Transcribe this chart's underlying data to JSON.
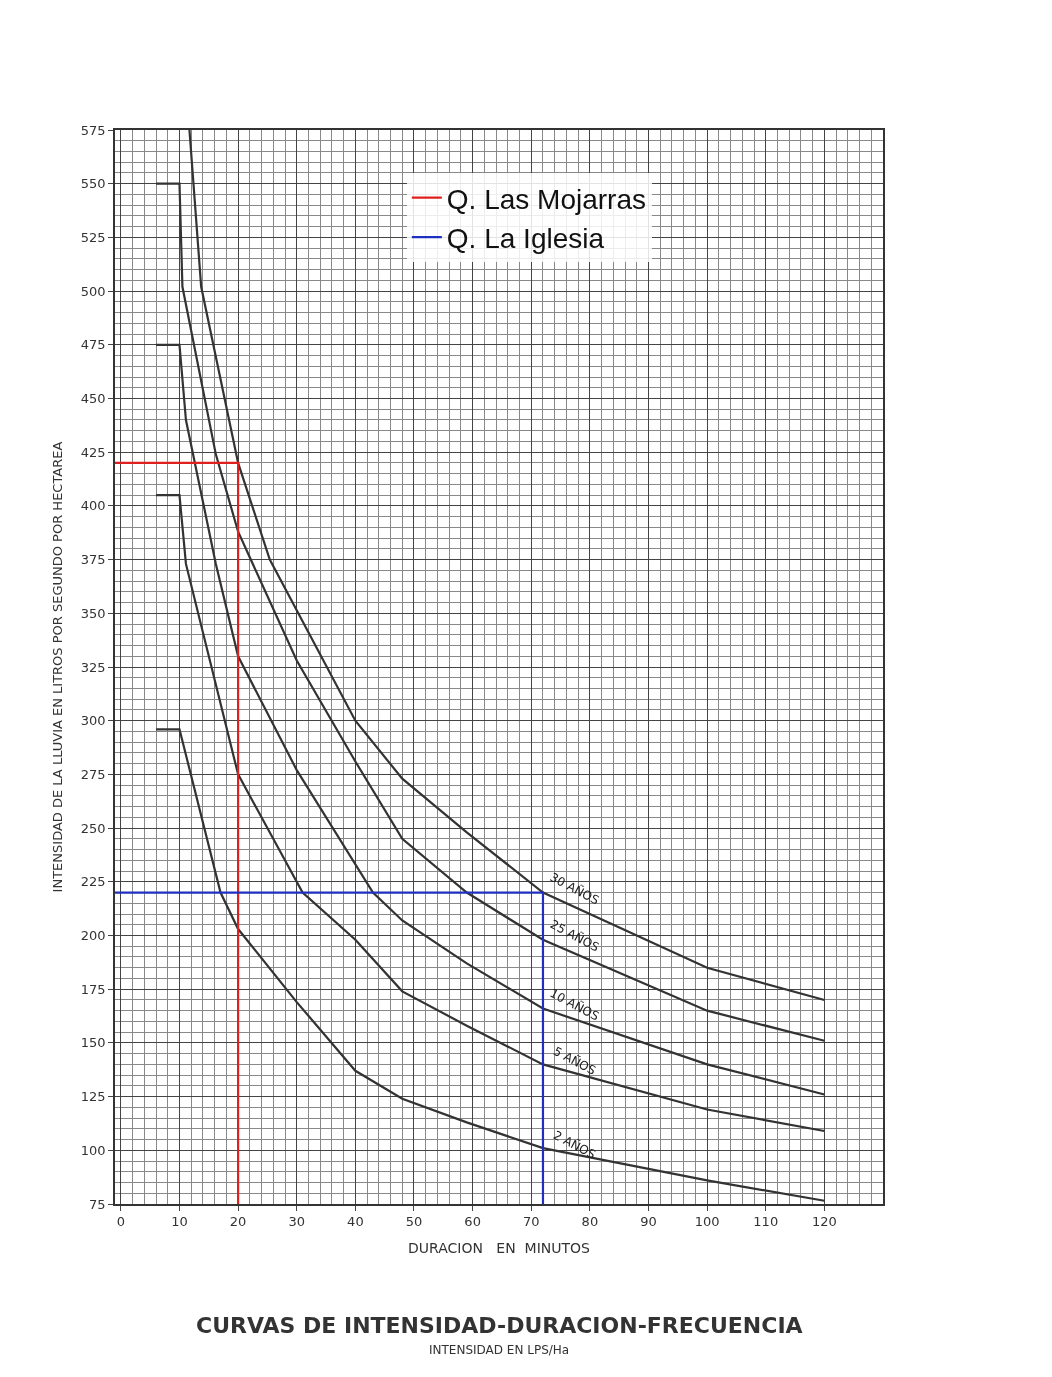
{
  "chart_data": {
    "type": "line",
    "title": "CURVAS DE INTENSIDAD-DURACION-FRECUENCIA",
    "subtitle": "INTENSIDAD EN LPS/Ha",
    "xlabel": "DURACION   EN  MINUTOS",
    "ylabel": "INTENSIDAD DE LA LLUVIA EN LITROS POR SEGUNDO POR HECTAREA",
    "series": [
      {
        "name": "30 AÑOS",
        "color": "#333333",
        "x": [
          11.7,
          13.7,
          20,
          25.4,
          40,
          48,
          59,
          72,
          100,
          120
        ],
        "values": [
          575,
          502,
          420,
          375,
          300,
          273,
          248,
          220,
          185,
          170
        ]
      },
      {
        "name": "25 AÑOS",
        "color": "#333333",
        "x": [
          6,
          10,
          10.5,
          16.2,
          20,
          30,
          40,
          48,
          59,
          72,
          100,
          120
        ],
        "values": [
          550,
          550,
          502,
          424,
          388,
          328,
          281,
          245,
          220,
          198,
          165,
          151
        ]
      },
      {
        "name": "10 AÑOS",
        "color": "#333333",
        "x": [
          6,
          10,
          11.1,
          16.2,
          20,
          30,
          43,
          48,
          59,
          72,
          100,
          120
        ],
        "values": [
          475,
          475,
          440,
          373,
          330,
          277,
          220,
          207,
          187,
          166,
          140,
          126
        ]
      },
      {
        "name": "5 AÑOS",
        "color": "#333333",
        "x": [
          6,
          10,
          11.1,
          20,
          31,
          40,
          48,
          59,
          72,
          100,
          120
        ],
        "values": [
          405,
          405,
          373,
          275,
          220,
          198,
          174,
          158,
          140,
          119,
          109
        ]
      },
      {
        "name": "2 AÑOS",
        "color": "#333333",
        "x": [
          6,
          10,
          17,
          20,
          30,
          40,
          48,
          59,
          72,
          100,
          120
        ],
        "values": [
          296,
          296,
          220,
          203,
          169,
          137,
          124,
          113,
          101,
          86,
          76.5
        ]
      },
      {
        "name": "Q. Las Mojarras",
        "color": "#e0201f",
        "x": [
          -1,
          20,
          20
        ],
        "values": [
          420,
          420,
          75
        ]
      },
      {
        "name": "Q. La Iglesia",
        "color": "#1f2fc0",
        "x": [
          -1,
          72,
          72
        ],
        "values": [
          220,
          220,
          75
        ]
      }
    ],
    "xlim": [
      -1,
      130
    ],
    "xticks": [
      0,
      10,
      20,
      30,
      40,
      50,
      60,
      70,
      80,
      90,
      100,
      110,
      120
    ],
    "ylim": [
      75,
      575
    ],
    "yticks": [
      75,
      100,
      125,
      150,
      175,
      200,
      225,
      250,
      275,
      300,
      325,
      350,
      375,
      400,
      425,
      450,
      475,
      500,
      525,
      550,
      575
    ],
    "grid": true,
    "legend": "top",
    "marker": "none",
    "line_style": "solid"
  }
}
